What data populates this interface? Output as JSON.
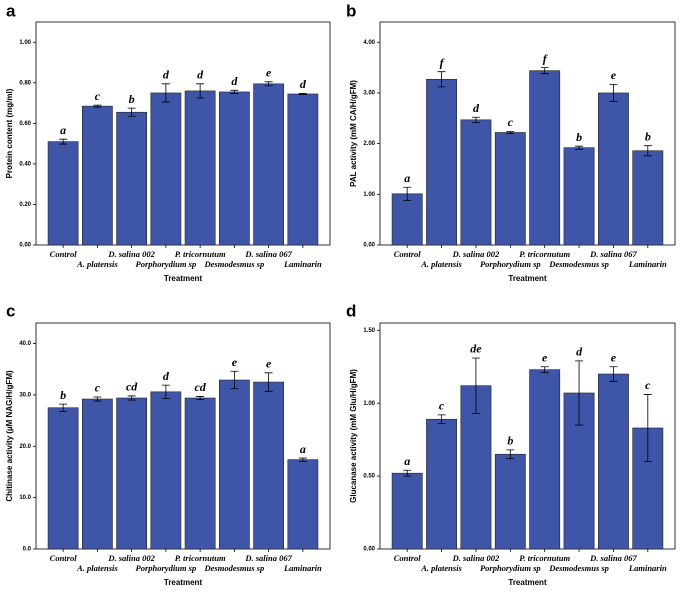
{
  "chart_data": [
    {
      "type": "bar",
      "panel": "a",
      "x_label": "Treatment",
      "y_label": "Protein content (mg/ml)",
      "color": "#3f55a8",
      "categories": [
        "Control",
        "A. platensis",
        "D. salina 002",
        "Porphorydium sp",
        "P. tricornutum",
        "Desmodesmus sp",
        "D. salina 067",
        "Laminarin"
      ],
      "values": [
        0.51,
        0.685,
        0.655,
        0.75,
        0.76,
        0.755,
        0.795,
        0.745
      ],
      "errors": [
        0.012,
        0.005,
        0.02,
        0.045,
        0.035,
        0.008,
        0.01,
        0.003
      ],
      "annotations": [
        "a",
        "c",
        "b",
        "d",
        "d",
        "d",
        "e",
        "d"
      ],
      "ylim": [
        0,
        1.1
      ],
      "yticks": [
        {
          "value": 0,
          "label": "0.00"
        },
        {
          "value": 0.2,
          "label": "0.20"
        },
        {
          "value": 0.4,
          "label": "0.40"
        },
        {
          "value": 0.6,
          "label": "0.60"
        },
        {
          "value": 0.8,
          "label": "0.80"
        },
        {
          "value": 1,
          "label": "1.00"
        }
      ]
    },
    {
      "type": "bar",
      "panel": "b",
      "x_label": "Treatment",
      "y_label": "PAL activity (mM CA/H/gFM)",
      "color": "#3f55a8",
      "categories": [
        "Control",
        "A. platensis",
        "D. salina 002",
        "Porphorydium sp",
        "P. tricornutum",
        "Desmodesmus sp",
        "D. salina 067",
        "Laminarin"
      ],
      "values": [
        1.01,
        3.27,
        2.47,
        2.22,
        3.44,
        1.92,
        3.0,
        1.86
      ],
      "errors": [
        0.13,
        0.15,
        0.05,
        0.02,
        0.06,
        0.03,
        0.17,
        0.1
      ],
      "annotations": [
        "a",
        "f",
        "d",
        "c",
        "f",
        "b",
        "e",
        "b"
      ],
      "ylim": [
        0,
        4.4
      ],
      "yticks": [
        {
          "value": 0,
          "label": "0.00"
        },
        {
          "value": 1,
          "label": "1.00"
        },
        {
          "value": 2,
          "label": "2.00"
        },
        {
          "value": 3,
          "label": "3.00"
        },
        {
          "value": 4,
          "label": "4.00"
        }
      ]
    },
    {
      "type": "bar",
      "panel": "c",
      "x_label": "Treatment",
      "y_label": "Chitinase activity (µM NAG/H/gFM)",
      "color": "#3f55a8",
      "categories": [
        "Control",
        "A. platensis",
        "D. salina 002",
        "Porphorydium sp",
        "P. tricornutum",
        "Desmodesmus sp",
        "D. salina 067",
        "Laminarin"
      ],
      "values": [
        27.5,
        29.2,
        29.4,
        30.6,
        29.4,
        32.9,
        32.5,
        17.4
      ],
      "errors": [
        0.7,
        0.4,
        0.4,
        1.3,
        0.3,
        1.7,
        1.8,
        0.3
      ],
      "annotations": [
        "b",
        "c",
        "cd",
        "d",
        "cd",
        "e",
        "e",
        "a"
      ],
      "ylim": [
        0,
        44
      ],
      "yticks": [
        {
          "value": 0,
          "label": "0.0"
        },
        {
          "value": 10,
          "label": "10.0"
        },
        {
          "value": 20,
          "label": "20.0"
        },
        {
          "value": 30,
          "label": "30.0"
        },
        {
          "value": 40,
          "label": "40.0"
        }
      ]
    },
    {
      "type": "bar",
      "panel": "d",
      "x_label": "Treatment",
      "y_label": "Glucanase activity (mM Glu/H/gFM)",
      "color": "#3f55a8",
      "categories": [
        "Control",
        "A. platensis",
        "D. salina 002",
        "Porphorydium sp",
        "P. tricornutum",
        "Desmodesmus sp",
        "D. salina 067",
        "Laminarin"
      ],
      "values": [
        0.52,
        0.89,
        1.12,
        0.65,
        1.23,
        1.07,
        1.2,
        0.83
      ],
      "errors": [
        0.02,
        0.03,
        0.19,
        0.03,
        0.02,
        0.22,
        0.05,
        0.23
      ],
      "annotations": [
        "a",
        "c",
        "de",
        "b",
        "e",
        "d",
        "e",
        "c"
      ],
      "ylim": [
        0,
        1.55
      ],
      "yticks": [
        {
          "value": 0,
          "label": "0.00"
        },
        {
          "value": 0.5,
          "label": "0.50"
        },
        {
          "value": 1,
          "label": "1.00"
        },
        {
          "value": 1.5,
          "label": "1.50"
        }
      ]
    }
  ]
}
